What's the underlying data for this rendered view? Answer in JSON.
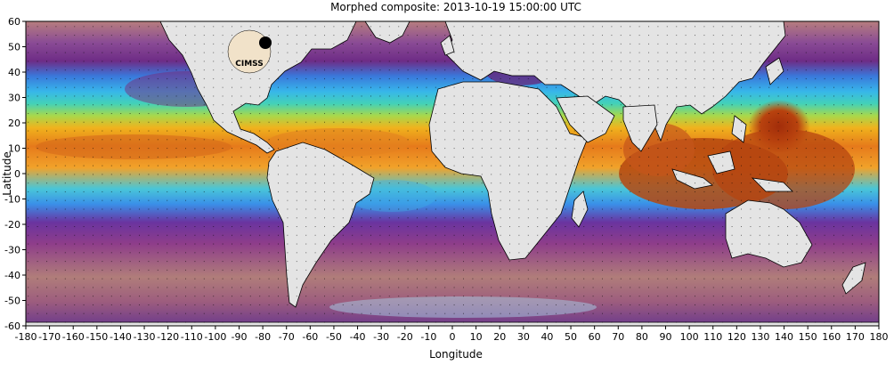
{
  "title": "Morphed composite: 2013-10-19 15:00:00 UTC",
  "x_axis": {
    "label": "Longitude",
    "ticks": [
      -180,
      -170,
      -160,
      -150,
      -140,
      -130,
      -120,
      -110,
      -100,
      -90,
      -80,
      -70,
      -60,
      -50,
      -40,
      -30,
      -20,
      -10,
      0,
      10,
      20,
      30,
      40,
      50,
      60,
      70,
      80,
      90,
      100,
      110,
      120,
      130,
      140,
      150,
      160,
      170,
      180
    ]
  },
  "y_axis": {
    "label": "Latitude",
    "ticks": [
      60,
      50,
      40,
      30,
      20,
      10,
      0,
      -10,
      -20,
      -30,
      -40,
      -50,
      -60
    ]
  },
  "logo_text": "CIMSS",
  "colors": {
    "land": "#e4e4e4",
    "border": "#000000",
    "moist_high": "#a83a0c",
    "moist_mid": "#e8801e",
    "moist_low": "#3fb7e8",
    "dry": "#7a2a7a",
    "driest": "#b08080"
  },
  "features": {
    "typhoon_center": {
      "lon": 138,
      "lat": 17
    },
    "grid": true
  }
}
